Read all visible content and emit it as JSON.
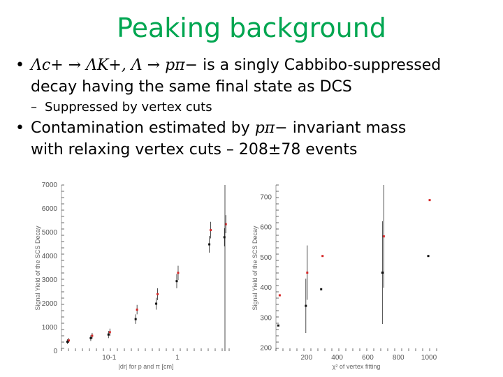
{
  "slide": {
    "title": "Peaking background",
    "bullet1": {
      "math": "Λc+ → ΛK+, Λ → pπ−",
      "text_a": " is a singly Cabbibo-suppressed",
      "text_b": "decay having the same final state as DCS"
    },
    "sub1": "Suppressed by vertex cuts",
    "bullet2": {
      "text_a": "Contamination estimated by ",
      "math": "pπ−",
      "text_b": " invariant mass",
      "text_c": "with relaxing vertex cuts – 208±78  events"
    }
  },
  "chart_data": [
    {
      "type": "scatter",
      "xlabel": "|dr| for p and π [cm]",
      "ylabel": "Signal Yield of the SCS Decay",
      "x_scale": "log",
      "ylim": [
        0,
        7000
      ],
      "y_ticks": [
        "0",
        "1000",
        "2000",
        "3000",
        "4000",
        "5000",
        "6000",
        "7000"
      ],
      "x_ticks": [
        "10-1",
        "1"
      ],
      "series": [
        {
          "color": "#d62828",
          "x": [
            0.025,
            0.055,
            0.1,
            0.25,
            0.5,
            1.0,
            3.0,
            5.0
          ],
          "y": [
            450,
            650,
            800,
            1750,
            2400,
            3300,
            5100,
            5350
          ],
          "err": [
            100,
            120,
            150,
            200,
            250,
            300,
            350,
            380
          ]
        },
        {
          "color": "#111111",
          "x": [
            0.025,
            0.055,
            0.1,
            0.25,
            0.5,
            1.0,
            3.0,
            5.0
          ],
          "y": [
            400,
            550,
            700,
            1350,
            2000,
            2950,
            4500,
            4800
          ],
          "err": [
            100,
            120,
            150,
            200,
            250,
            300,
            350,
            380
          ]
        }
      ]
    },
    {
      "type": "scatter",
      "xlabel": "χ² of vertex fitting",
      "ylabel": "Signal Yield of the SCS Decay",
      "xlim": [
        0,
        1050
      ],
      "ylim": [
        190,
        740
      ],
      "y_ticks": [
        "200",
        "300",
        "400",
        "500",
        "600",
        "700"
      ],
      "x_ticks": [
        "200",
        "400",
        "600",
        "800",
        "1000"
      ],
      "series": [
        {
          "color": "#d62828",
          "x": [
            20,
            200,
            300,
            700,
            1000
          ],
          "y": [
            375,
            450,
            505,
            570,
            690
          ],
          "err": [
            0,
            90,
            0,
            170,
            0
          ]
        },
        {
          "color": "#111111",
          "x": [
            20,
            200,
            300,
            700,
            1000
          ],
          "y": [
            275,
            340,
            395,
            450,
            505
          ],
          "err": [
            0,
            90,
            0,
            170,
            0
          ]
        }
      ]
    }
  ]
}
